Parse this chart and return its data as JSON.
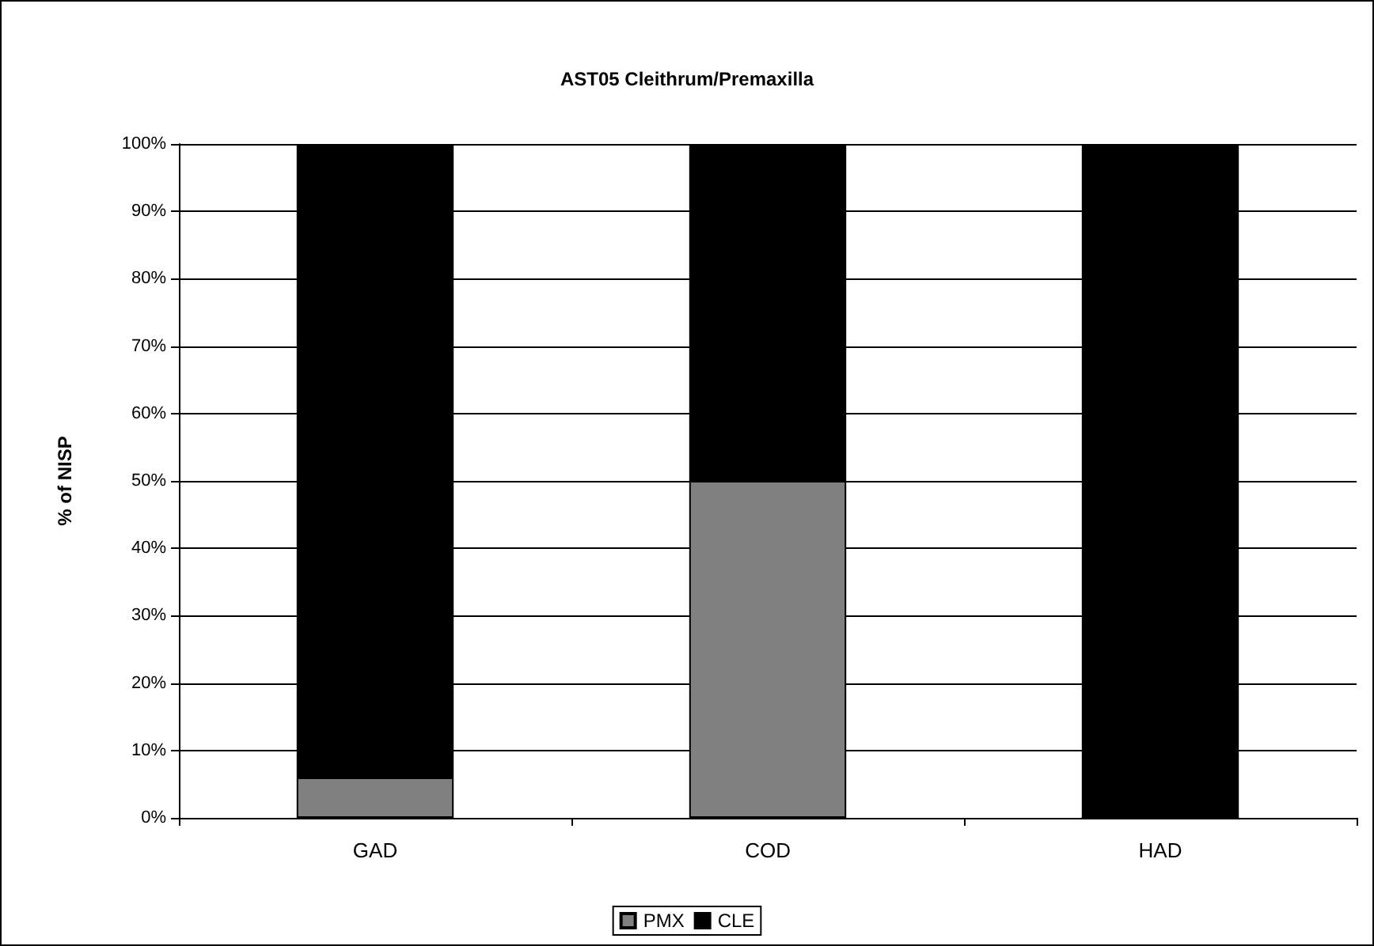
{
  "chart_data": {
    "type": "bar",
    "title": "AST05 Cleithrum/Premaxilla",
    "ylabel": "% of NISP",
    "categories": [
      "GAD",
      "COD",
      "HAD"
    ],
    "stacked": true,
    "series": [
      {
        "name": "PMX",
        "color": "#808080",
        "values": [
          6,
          50,
          0
        ]
      },
      {
        "name": "CLE",
        "color": "#000000",
        "values": [
          94,
          50,
          100
        ]
      }
    ],
    "ylim": [
      0,
      100
    ],
    "yticks": [
      {
        "value": 0,
        "label": "0%"
      },
      {
        "value": 10,
        "label": "10%"
      },
      {
        "value": 20,
        "label": "20%"
      },
      {
        "value": 30,
        "label": "30%"
      },
      {
        "value": 40,
        "label": "40%"
      },
      {
        "value": 50,
        "label": "50%"
      },
      {
        "value": 60,
        "label": "60%"
      },
      {
        "value": 70,
        "label": "70%"
      },
      {
        "value": 80,
        "label": "80%"
      },
      {
        "value": 90,
        "label": "90%"
      },
      {
        "value": 100,
        "label": "100%"
      }
    ],
    "grid": "y",
    "legend": "bottom"
  }
}
